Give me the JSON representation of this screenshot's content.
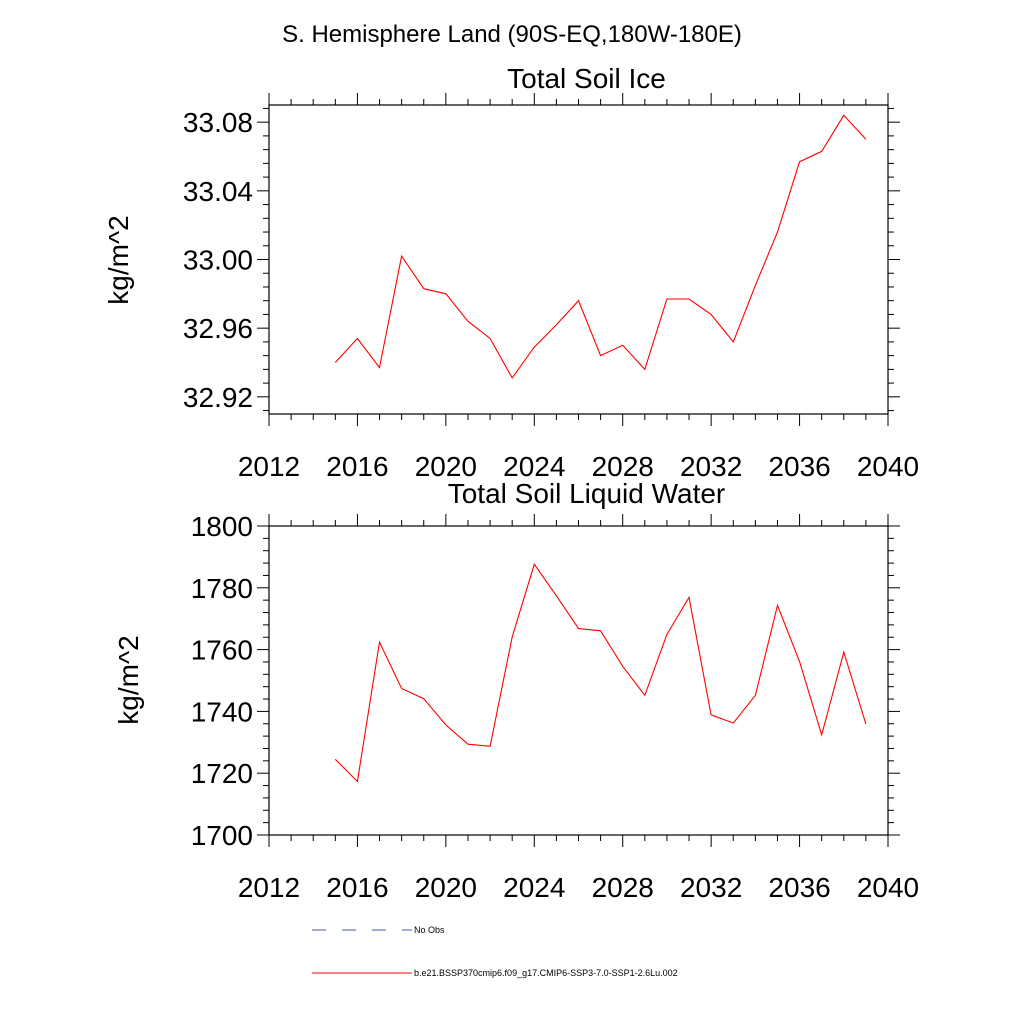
{
  "page": {
    "title": "S. Hemisphere Land (90S-EQ,180W-180E)"
  },
  "colors": {
    "series": "#ff0000",
    "obs": "#4a5aa8",
    "axis": "#000000"
  },
  "legend": {
    "obs_label": "No Obs",
    "model_label": "b.e21.BSSP370cmip6.f09_g17.CMIP6-SSP3-7.0-SSP1-2.6Lu.002"
  },
  "chart_data": [
    {
      "type": "line",
      "title": "Total Soil Ice",
      "xlabel": "",
      "ylabel": "kg/m^2",
      "xlim": [
        2012,
        2040
      ],
      "ylim": [
        32.91,
        33.09
      ],
      "xticks": [
        2012,
        2016,
        2020,
        2024,
        2028,
        2032,
        2036,
        2040
      ],
      "xtick_labels": [
        "2012",
        "2016",
        "2020",
        "2024",
        "2028",
        "2032",
        "2036",
        "2040"
      ],
      "yticks": [
        32.92,
        32.96,
        33.0,
        33.04,
        33.08
      ],
      "ytick_labels": [
        "32.92",
        "32.96",
        "33.00",
        "33.04",
        "33.08"
      ],
      "grid": false,
      "x": [
        2015,
        2016,
        2017,
        2018,
        2019,
        2020,
        2021,
        2022,
        2023,
        2024,
        2025,
        2026,
        2027,
        2028,
        2029,
        2030,
        2031,
        2032,
        2033,
        2034,
        2035,
        2036,
        2037,
        2038,
        2039
      ],
      "series": [
        {
          "values": [
            32.94,
            32.954,
            32.937,
            33.002,
            32.983,
            32.98,
            32.964,
            32.954,
            32.931,
            32.949,
            32.962,
            32.976,
            32.944,
            32.95,
            32.936,
            32.977,
            32.977,
            32.968,
            32.952,
            32.985,
            33.016,
            33.057,
            33.063,
            33.084,
            33.07
          ]
        }
      ]
    },
    {
      "type": "line",
      "title": "Total Soil Liquid Water",
      "xlabel": "",
      "ylabel": "kg/m^2",
      "xlim": [
        2012,
        2040
      ],
      "ylim": [
        1700,
        1800
      ],
      "xticks": [
        2012,
        2016,
        2020,
        2024,
        2028,
        2032,
        2036,
        2040
      ],
      "xtick_labels": [
        "2012",
        "2016",
        "2020",
        "2024",
        "2028",
        "2032",
        "2036",
        "2040"
      ],
      "yticks": [
        1700,
        1720,
        1740,
        1760,
        1780,
        1800
      ],
      "ytick_labels": [
        "1700",
        "1720",
        "1740",
        "1760",
        "1780",
        "1800"
      ],
      "grid": false,
      "x": [
        2015,
        2016,
        2017,
        2018,
        2019,
        2020,
        2021,
        2022,
        2023,
        2024,
        2025,
        2026,
        2027,
        2028,
        2029,
        2030,
        2031,
        2032,
        2033,
        2034,
        2035,
        2036,
        2037,
        2038,
        2039
      ],
      "series": [
        {
          "values": [
            1724.5,
            1717.3,
            1762.4,
            1747.4,
            1744.1,
            1735.6,
            1729.4,
            1728.7,
            1764.1,
            1787.6,
            1777.4,
            1766.8,
            1766.1,
            1754.6,
            1745.2,
            1764.9,
            1776.9,
            1738.9,
            1736.2,
            1745.2,
            1774.3,
            1756.1,
            1732.4,
            1759.2,
            1735.9
          ]
        }
      ]
    }
  ]
}
